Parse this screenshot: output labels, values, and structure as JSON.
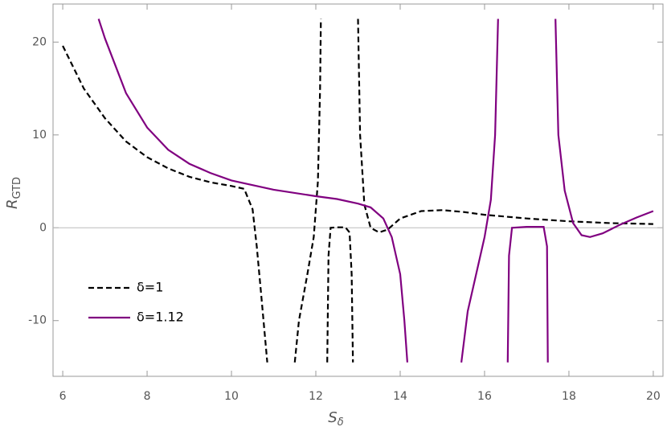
{
  "chart_data": {
    "type": "line",
    "x_label": "S",
    "x_label_sub": "δ",
    "y_label": "R",
    "y_label_sub": "GTD",
    "xlim": [
      5.77,
      20.23
    ],
    "ylim": [
      -16,
      24.1
    ],
    "xticks": [
      6,
      8,
      10,
      12,
      14,
      16,
      18,
      20
    ],
    "yticks": [
      -10,
      0,
      10,
      20
    ],
    "legend": "lower left",
    "series": [
      {
        "name": "δ=1",
        "color": "#000000",
        "dashed": true,
        "x": [
          6,
          6.5,
          7,
          7.5,
          8,
          8.5,
          9,
          9.5,
          10,
          10.3,
          10.5,
          10.6,
          10.7,
          10.8,
          10.85,
          null,
          11.5,
          11.6,
          11.8,
          11.95,
          12.05,
          12.1,
          12.12,
          null,
          12.27,
          12.3,
          12.35,
          12.5,
          12.7,
          12.8,
          12.85,
          12.88,
          null,
          13.0,
          13.05,
          13.15,
          13.3,
          13.5,
          13.7,
          14,
          14.5,
          15,
          15.5,
          16,
          17,
          18,
          19,
          20
        ],
        "values": [
          19.6,
          15,
          11.8,
          9.3,
          7.6,
          6.4,
          5.5,
          4.9,
          4.5,
          4.2,
          2,
          -2,
          -7,
          -12,
          -14.5,
          null,
          -14.5,
          -10,
          -5,
          -1,
          5,
          15,
          22.5,
          null,
          -14.5,
          -3,
          0,
          0.05,
          0.05,
          -0.5,
          -5,
          -14.5,
          null,
          22.5,
          10,
          2.5,
          0,
          -0.5,
          -0.2,
          1,
          1.8,
          1.9,
          1.7,
          1.4,
          1,
          0.7,
          0.5,
          0.4
        ]
      },
      {
        "name": "δ=1.12",
        "color": "#800080",
        "dashed": false,
        "x": [
          6.85,
          7,
          7.5,
          8,
          8.5,
          9,
          9.5,
          10,
          11,
          12,
          12.5,
          13,
          13.3,
          13.6,
          13.8,
          14,
          14.1,
          14.17,
          null,
          15.45,
          15.6,
          15.8,
          16,
          16.15,
          16.25,
          16.32,
          null,
          16.55,
          16.58,
          16.65,
          17,
          17.4,
          17.48,
          17.5,
          null,
          17.68,
          17.75,
          17.9,
          18.1,
          18.3,
          18.5,
          18.8,
          19.2,
          19.6,
          20
        ],
        "values": [
          22.5,
          20.4,
          14.5,
          10.8,
          8.4,
          6.9,
          5.9,
          5.1,
          4.1,
          3.4,
          3.1,
          2.6,
          2.2,
          1,
          -1,
          -5,
          -10,
          -14.5,
          null,
          -14.5,
          -9,
          -5,
          -1,
          3,
          10,
          22.5,
          null,
          -14.5,
          -3,
          0,
          0.1,
          0.1,
          -2,
          -14.5,
          null,
          22.5,
          10,
          4,
          0.5,
          -0.8,
          -1,
          -0.6,
          0.3,
          1.1,
          1.8
        ]
      }
    ]
  }
}
